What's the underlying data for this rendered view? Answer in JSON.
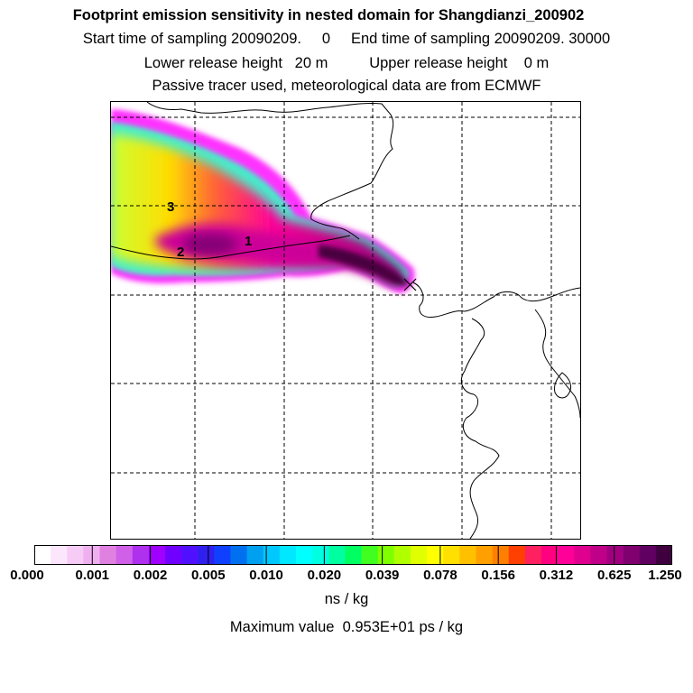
{
  "title": "Footprint emission sensitivity in nested domain for Shangdianzi_200902",
  "subtitle_lines": [
    "Start time of sampling 20090209.     0     End time of sampling 20090209. 30000",
    "Lower release height   20 m          Upper release height    0 m",
    "Passive tracer used, meteorological data are from ECMWF"
  ],
  "map": {
    "plume_labels": [
      "1",
      "2",
      "3"
    ],
    "colors": {
      "plume_outer": "#ff33ff",
      "plume_inner_gradient": [
        "#00ffff",
        "#ffff00",
        "#ffa500",
        "#ff3333",
        "#ff0099",
        "#660066"
      ],
      "coastline": "#000000",
      "gridline": "#000000"
    }
  },
  "colorbar": {
    "labels": [
      "0.000",
      "0.001",
      "0.002",
      "0.005",
      "0.010",
      "0.020",
      "0.039",
      "0.078",
      "0.156",
      "0.312",
      "0.625",
      "1.250"
    ],
    "colors": [
      "#ffffff",
      "#fbe6fb",
      "#f6ccf6",
      "#f0b0f0",
      "#e080e0",
      "#d060e8",
      "#b030f0",
      "#a000ff",
      "#7000ff",
      "#5010ff",
      "#3020f0",
      "#1040ff",
      "#0070f0",
      "#00a0f0",
      "#00c8ff",
      "#00e8ff",
      "#00ffff",
      "#00ffe0",
      "#00ffa0",
      "#00ff60",
      "#40ff20",
      "#80ff00",
      "#b0ff00",
      "#e0ff00",
      "#ffff00",
      "#ffe000",
      "#ffc000",
      "#ffa000",
      "#ff8000",
      "#ff4000",
      "#ff2060",
      "#ff0080",
      "#ff0099",
      "#e00090",
      "#c00088",
      "#a00080",
      "#800070",
      "#600060",
      "#400040"
    ],
    "unit": "ns / kg"
  },
  "max_value_text": "Maximum value  0.953E+01 ps / kg"
}
